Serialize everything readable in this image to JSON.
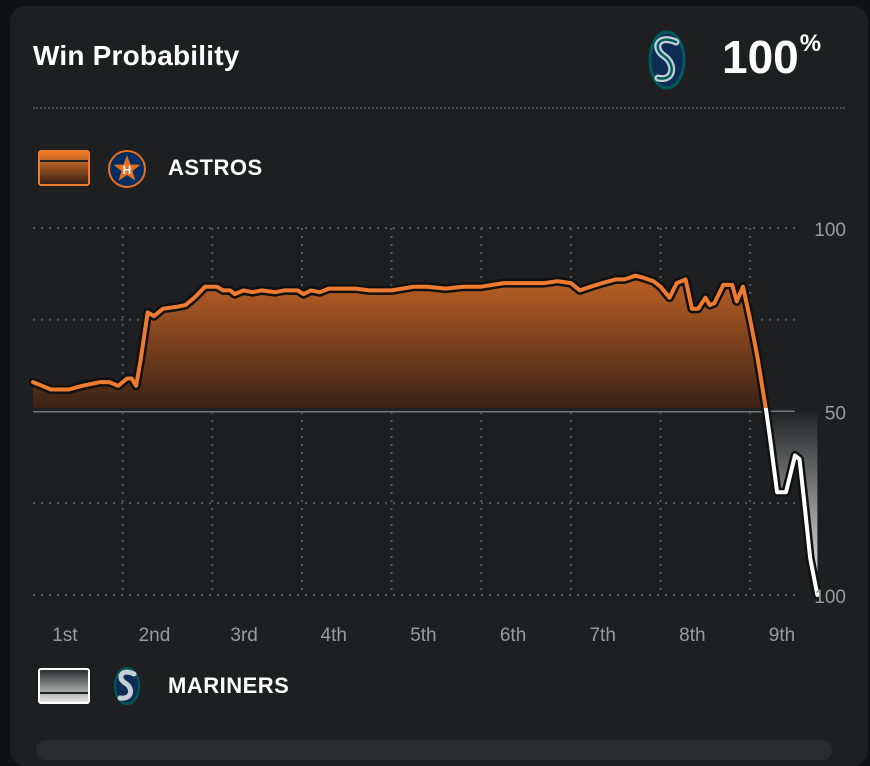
{
  "header": {
    "title": "Win Probability"
  },
  "leader": {
    "team_logo": "seattle-mariners-logo",
    "probability": "100",
    "unit": "%"
  },
  "teams": {
    "top": {
      "name": "ASTROS",
      "logo": "houston-astros-logo",
      "color": "#ef7b30"
    },
    "bottom": {
      "name": "MARINERS",
      "logo": "seattle-mariners-logo",
      "color": "#ffffff"
    }
  },
  "chart_data": {
    "type": "area",
    "y_tick_labels": [
      "100",
      "50",
      "100"
    ],
    "ylim": [
      0,
      100
    ],
    "innings": [
      "1st",
      "2nd",
      "3rd",
      "4th",
      "5th",
      "6th",
      "7th",
      "8th",
      "9th"
    ],
    "x_range": [
      1,
      9.5
    ],
    "grid": true,
    "series": [
      {
        "name": "ASTROS",
        "points": [
          [
            1.0,
            58
          ],
          [
            1.1,
            57
          ],
          [
            1.2,
            56
          ],
          [
            1.4,
            56
          ],
          [
            1.55,
            57
          ],
          [
            1.75,
            58
          ],
          [
            1.85,
            58
          ],
          [
            1.95,
            57
          ],
          [
            2.05,
            59
          ],
          [
            2.1,
            59
          ],
          [
            2.15,
            57
          ],
          [
            2.2,
            64
          ],
          [
            2.28,
            77
          ],
          [
            2.35,
            76
          ],
          [
            2.45,
            78
          ],
          [
            2.6,
            78.5
          ],
          [
            2.7,
            79
          ],
          [
            2.8,
            81
          ],
          [
            2.92,
            84
          ],
          [
            3.05,
            84
          ],
          [
            3.12,
            83
          ],
          [
            3.2,
            83
          ],
          [
            3.25,
            82
          ],
          [
            3.35,
            83
          ],
          [
            3.45,
            82.5
          ],
          [
            3.55,
            83
          ],
          [
            3.7,
            82.5
          ],
          [
            3.8,
            83
          ],
          [
            3.95,
            83
          ],
          [
            4.02,
            82
          ],
          [
            4.1,
            83
          ],
          [
            4.2,
            82.5
          ],
          [
            4.3,
            83.5
          ],
          [
            4.45,
            83.5
          ],
          [
            4.6,
            83.5
          ],
          [
            4.75,
            83
          ],
          [
            4.9,
            83
          ],
          [
            5.0,
            83
          ],
          [
            5.25,
            84
          ],
          [
            5.4,
            84
          ],
          [
            5.6,
            83.5
          ],
          [
            5.8,
            84
          ],
          [
            6.0,
            84
          ],
          [
            6.25,
            85
          ],
          [
            6.5,
            85
          ],
          [
            6.7,
            85
          ],
          [
            6.85,
            85.5
          ],
          [
            7.0,
            85
          ],
          [
            7.1,
            83
          ],
          [
            7.22,
            84
          ],
          [
            7.35,
            85
          ],
          [
            7.5,
            86
          ],
          [
            7.6,
            86
          ],
          [
            7.72,
            87
          ],
          [
            7.8,
            86.5
          ],
          [
            7.92,
            85.5
          ],
          [
            8.0,
            84
          ],
          [
            8.1,
            81
          ],
          [
            8.18,
            85
          ],
          [
            8.28,
            86
          ],
          [
            8.35,
            78
          ],
          [
            8.42,
            78
          ],
          [
            8.5,
            81
          ],
          [
            8.55,
            79
          ],
          [
            8.6,
            79.5
          ],
          [
            8.7,
            84.5
          ],
          [
            8.8,
            84.5
          ],
          [
            8.85,
            80
          ],
          [
            8.92,
            84
          ],
          [
            9.0,
            75
          ],
          [
            9.08,
            65
          ],
          [
            9.18,
            50
          ],
          [
            9.22,
            43
          ],
          [
            9.3,
            28
          ],
          [
            9.4,
            28
          ],
          [
            9.5,
            38
          ],
          [
            9.55,
            37
          ],
          [
            9.6,
            26
          ],
          [
            9.67,
            10
          ],
          [
            9.75,
            0
          ]
        ]
      }
    ]
  }
}
